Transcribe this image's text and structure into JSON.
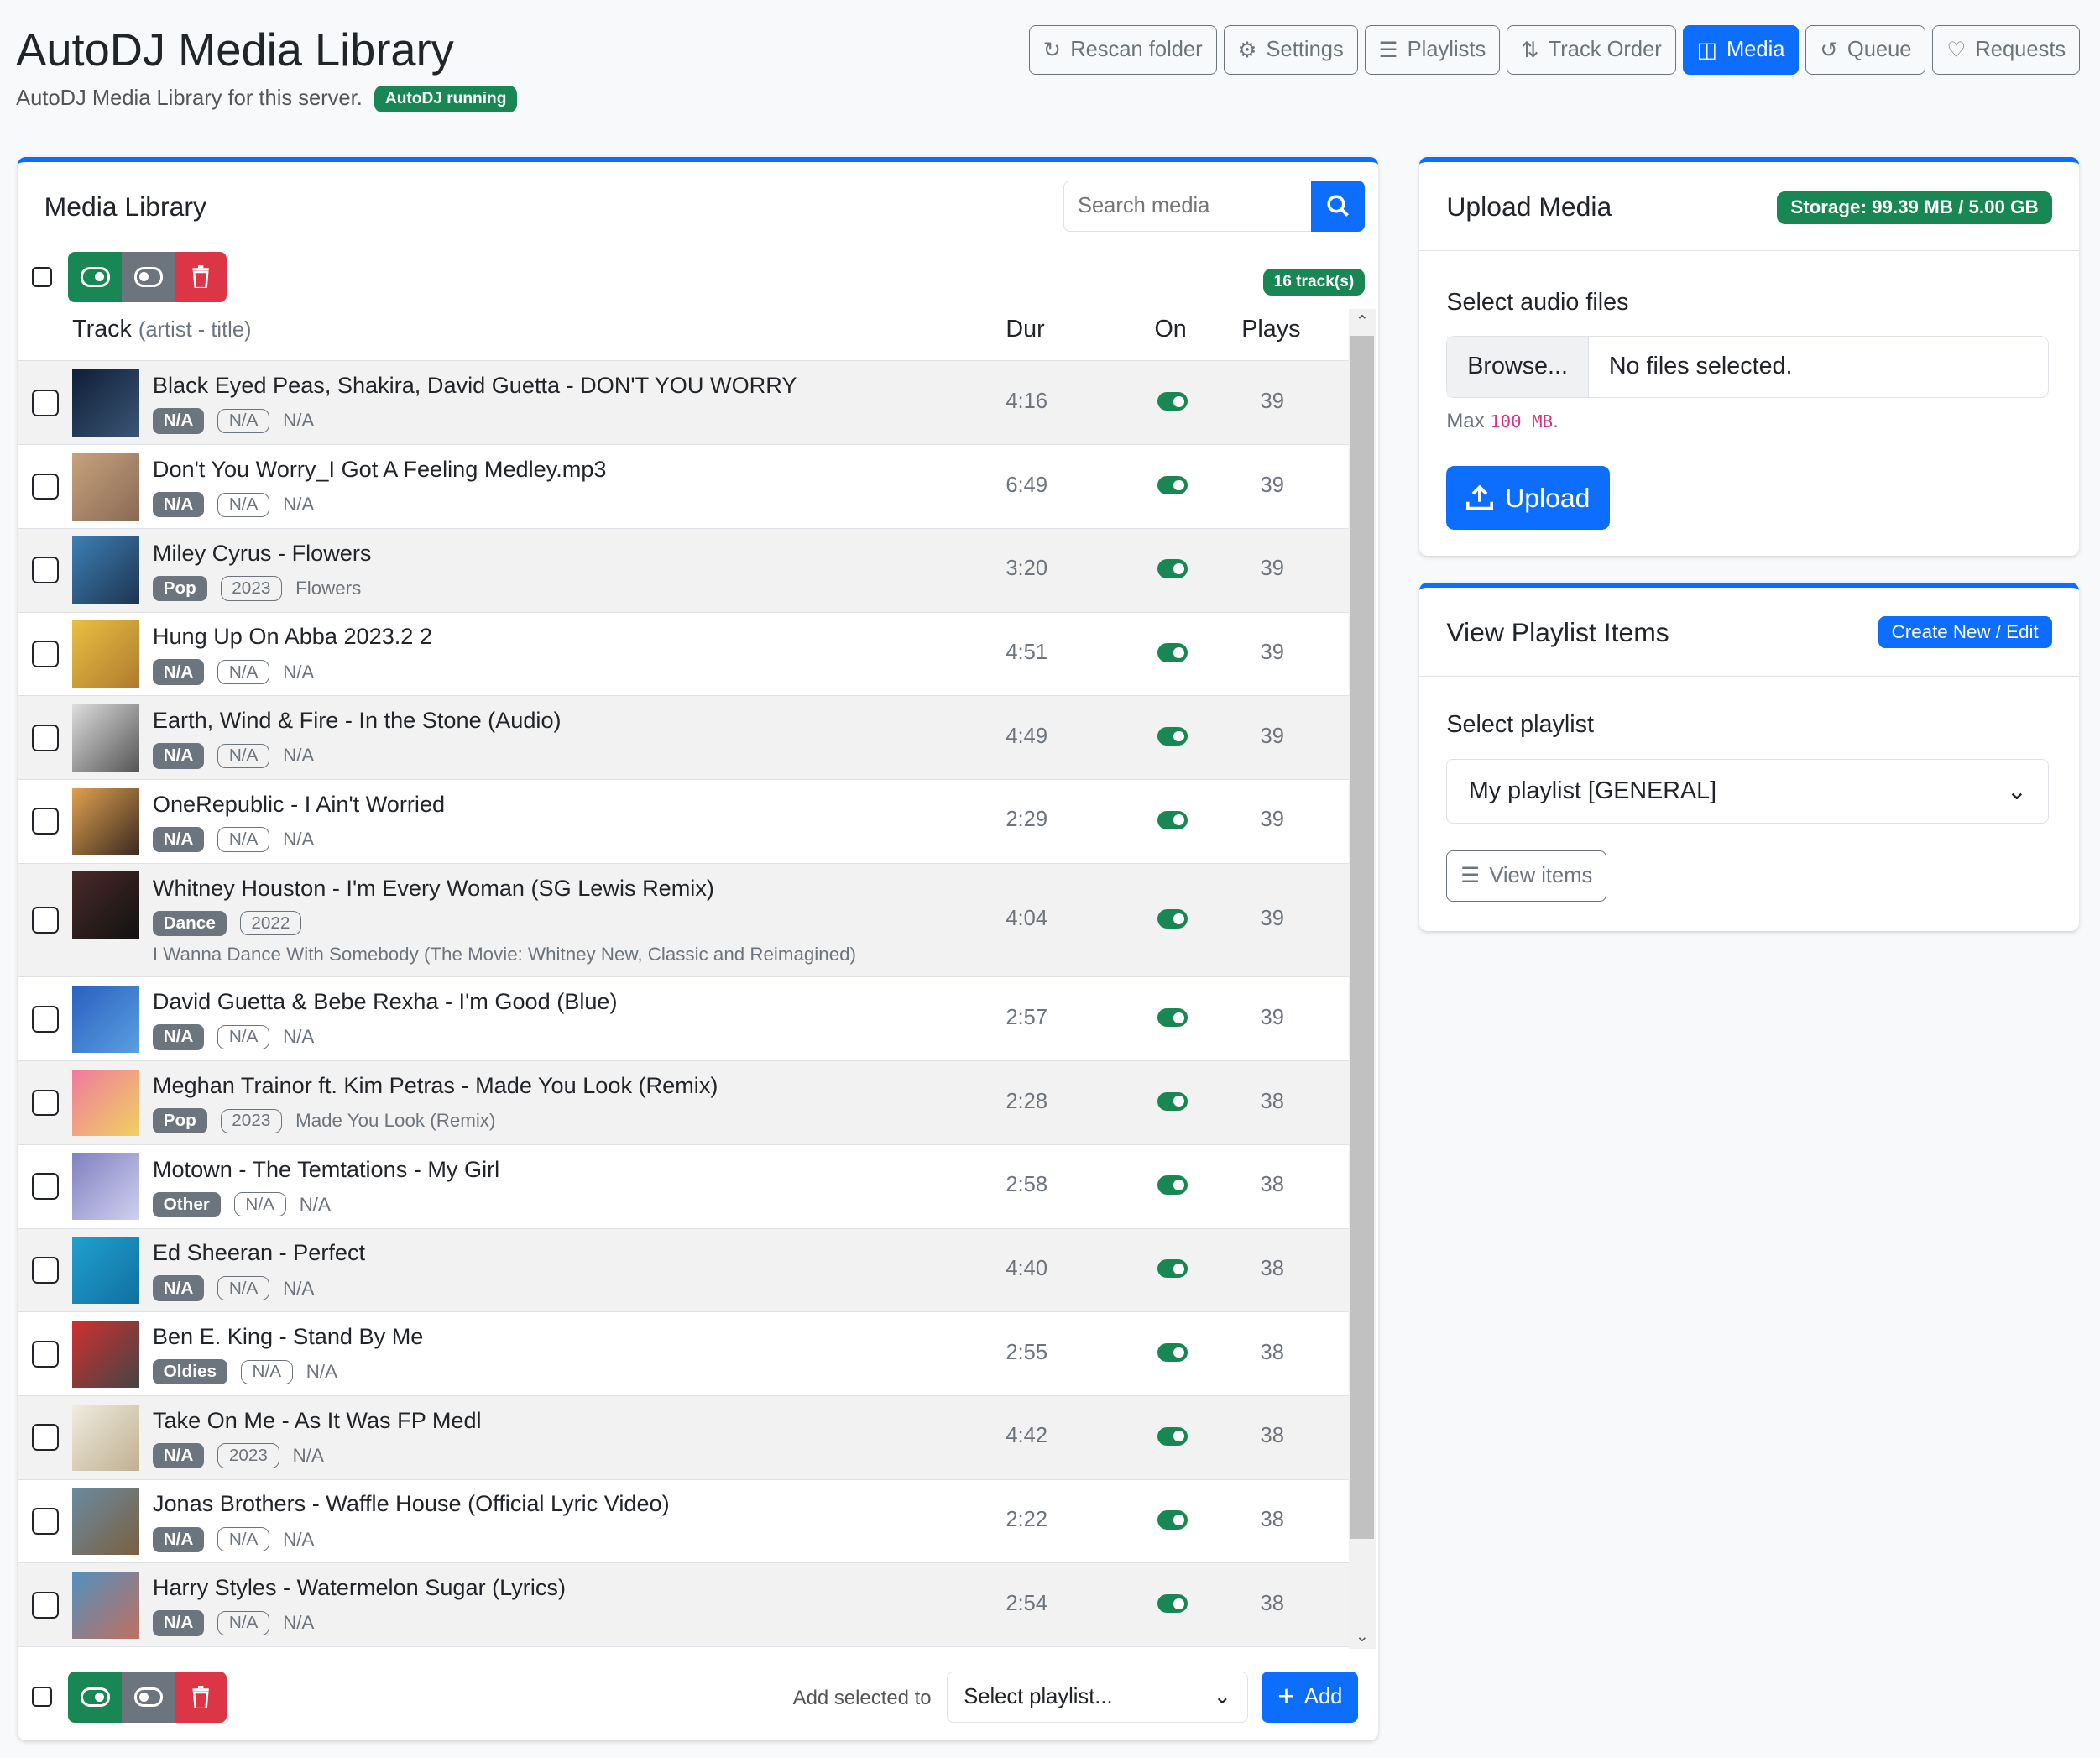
{
  "header": {
    "title": "AutoDJ Media Library",
    "subtitle": "AutoDJ Media Library for this server.",
    "status_badge": "AutoDJ running"
  },
  "nav": [
    {
      "label": "Rescan folder",
      "icon": "refresh-icon"
    },
    {
      "label": "Settings",
      "icon": "gears-icon"
    },
    {
      "label": "Playlists",
      "icon": "list-check-icon"
    },
    {
      "label": "Track Order",
      "icon": "sort-icon"
    },
    {
      "label": "Media",
      "icon": "media-icon",
      "active": true
    },
    {
      "label": "Queue",
      "icon": "history-icon"
    },
    {
      "label": "Requests",
      "icon": "bell-icon"
    }
  ],
  "library": {
    "title": "Media Library",
    "search_placeholder": "Search media",
    "count": "16 track(s)",
    "columns": {
      "track": "Track",
      "track_hint": "(artist - title)",
      "dur": "Dur",
      "on": "On",
      "plays": "Plays"
    },
    "tracks": [
      {
        "title": "Black Eyed Peas, Shakira, David Guetta - DON'T YOU WORRY",
        "genre": "N/A",
        "year": "N/A",
        "album": "N/A",
        "dur": "4:16",
        "on": true,
        "plays": "39",
        "art": [
          "#0f1f35",
          "#3a5575"
        ]
      },
      {
        "title": "Don't You Worry_I Got A Feeling Medley.mp3",
        "genre": "N/A",
        "year": "N/A",
        "album": "N/A",
        "dur": "6:49",
        "on": true,
        "plays": "39",
        "art": [
          "#c7a27c",
          "#8a6a55"
        ]
      },
      {
        "title": "Miley Cyrus - Flowers",
        "genre": "Pop",
        "year": "2023",
        "album": "Flowers",
        "dur": "3:20",
        "on": true,
        "plays": "39",
        "art": [
          "#3d7fb5",
          "#1d3550"
        ]
      },
      {
        "title": "Hung Up On Abba 2023.2 2",
        "genre": "N/A",
        "year": "N/A",
        "album": "N/A",
        "dur": "4:51",
        "on": true,
        "plays": "39",
        "art": [
          "#e8c040",
          "#b07a30"
        ]
      },
      {
        "title": "Earth, Wind & Fire - In the Stone (Audio)",
        "genre": "N/A",
        "year": "N/A",
        "album": "N/A",
        "dur": "4:49",
        "on": true,
        "plays": "39",
        "art": [
          "#ddd",
          "#555"
        ]
      },
      {
        "title": "OneRepublic - I Ain't Worried",
        "genre": "N/A",
        "year": "N/A",
        "album": "N/A",
        "dur": "2:29",
        "on": true,
        "plays": "39",
        "art": [
          "#e0a050",
          "#3a2a20"
        ]
      },
      {
        "title": "Whitney Houston - I'm Every Woman (SG Lewis Remix)",
        "genre": "Dance",
        "year": "2022",
        "album": "I Wanna Dance With Somebody (The Movie: Whitney New, Classic and Reimagined)",
        "dur": "4:04",
        "on": true,
        "plays": "39",
        "art": [
          "#4a2a2a",
          "#111"
        ]
      },
      {
        "title": "David Guetta & Bebe Rexha - I'm Good (Blue)",
        "genre": "N/A",
        "year": "N/A",
        "album": "N/A",
        "dur": "2:57",
        "on": true,
        "plays": "39",
        "art": [
          "#2a5fc0",
          "#5aa0e0"
        ]
      },
      {
        "title": "Meghan Trainor ft. Kim Petras - Made You Look (Remix)",
        "genre": "Pop",
        "year": "2023",
        "album": "Made You Look (Remix)",
        "dur": "2:28",
        "on": true,
        "plays": "38",
        "art": [
          "#f07aa0",
          "#f0d060"
        ]
      },
      {
        "title": "Motown - The Temtations - My Girl",
        "genre": "Other",
        "year": "N/A",
        "album": "N/A",
        "dur": "2:58",
        "on": true,
        "plays": "38",
        "art": [
          "#8080c0",
          "#d0d0f0"
        ]
      },
      {
        "title": "Ed Sheeran - Perfect",
        "genre": "N/A",
        "year": "N/A",
        "album": "N/A",
        "dur": "4:40",
        "on": true,
        "plays": "38",
        "art": [
          "#20a0d0",
          "#1070a0"
        ]
      },
      {
        "title": "Ben E. King - Stand By Me",
        "genre": "Oldies",
        "year": "N/A",
        "album": "N/A",
        "dur": "2:55",
        "on": true,
        "plays": "38",
        "art": [
          "#d03030",
          "#444"
        ]
      },
      {
        "title": "Take On Me - As It Was FP Medl",
        "genre": "N/A",
        "year": "2023",
        "album": "N/A",
        "dur": "4:42",
        "on": true,
        "plays": "38",
        "art": [
          "#f0ece0",
          "#c0b090"
        ]
      },
      {
        "title": "Jonas Brothers - Waffle House (Official Lyric Video)",
        "genre": "N/A",
        "year": "N/A",
        "album": "N/A",
        "dur": "2:22",
        "on": true,
        "plays": "38",
        "art": [
          "#6a8aa0",
          "#7a6040"
        ]
      },
      {
        "title": "Harry Styles - Watermelon Sugar (Lyrics)",
        "genre": "N/A",
        "year": "N/A",
        "album": "N/A",
        "dur": "2:54",
        "on": true,
        "plays": "38",
        "art": [
          "#5090c0",
          "#c07060"
        ]
      }
    ],
    "footer": {
      "add_label": "Add selected to",
      "select_value": "Select playlist...",
      "add_button": "Add"
    }
  },
  "upload": {
    "title": "Upload Media",
    "storage": "Storage: 99.39 MB / 5.00 GB",
    "label": "Select audio files",
    "browse": "Browse...",
    "no_files": "No files selected.",
    "max_prefix": "Max",
    "max_value": "100 MB",
    "max_suffix": ".",
    "button": "Upload"
  },
  "playlist": {
    "title": "View Playlist Items",
    "create": "Create New / Edit",
    "label": "Select playlist",
    "selected": "My playlist [GENERAL]",
    "view": "View items"
  },
  "colors": {
    "primary": "#0d6efd",
    "success": "#198754",
    "danger": "#dc3545",
    "secondary": "#6c757d"
  }
}
